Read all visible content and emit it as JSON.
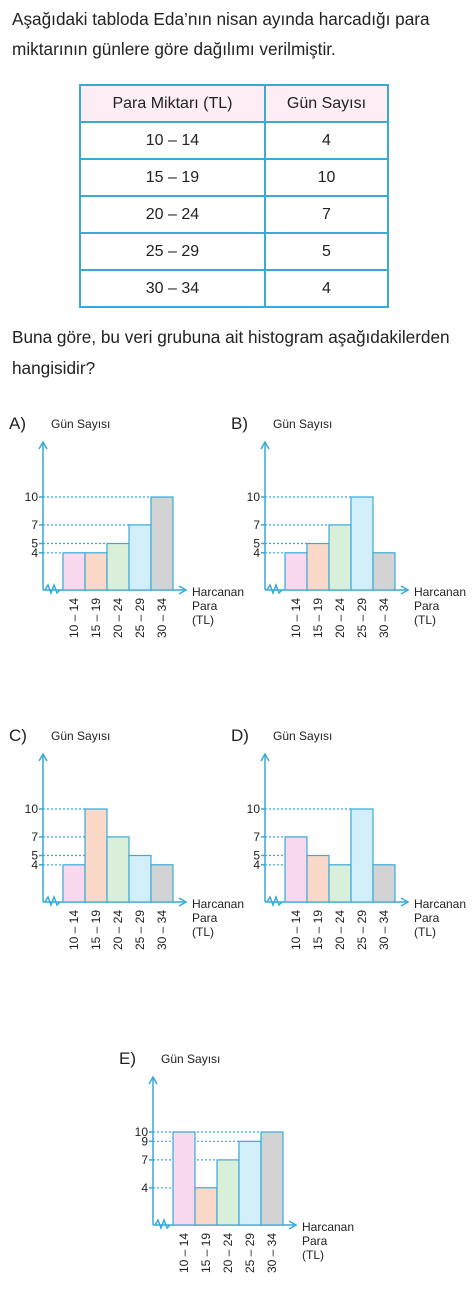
{
  "intro_text": "Aşağıdaki tabloda Eda’nın nisan ayında harcadığı para miktarının günlere göre dağılımı verilmiştir.",
  "table": {
    "headers": [
      "Para Miktarı (TL)",
      "Gün Sayısı"
    ],
    "rows": [
      [
        "10 – 14",
        "4"
      ],
      [
        "15 – 19",
        "10"
      ],
      [
        "20 – 24",
        "7"
      ],
      [
        "25 – 29",
        "5"
      ],
      [
        "30 – 34",
        "4"
      ]
    ]
  },
  "question_text": "Buna göre, bu veri grubuna ait histogram aşağıdakilerden hangisidir?",
  "colors": {
    "accent": "#39a9d9",
    "bars": [
      "#f9d9ee",
      "#fbd9c9",
      "#d9efd9",
      "#d2eef8",
      "#d3d3d3"
    ]
  },
  "chart_data": [
    {
      "type": "bar",
      "option": "A)",
      "ylabel": "Gün Sayısı",
      "xlabel_lines": [
        "Harcanan",
        "Para",
        "(TL)"
      ],
      "categories": [
        "10 – 14",
        "15 – 19",
        "20 – 24",
        "25 – 29",
        "30 – 34"
      ],
      "values": [
        4,
        4,
        5,
        7,
        10
      ],
      "ticks": [
        4,
        5,
        7,
        10
      ]
    },
    {
      "type": "bar",
      "option": "B)",
      "ylabel": "Gün Sayısı",
      "xlabel_lines": [
        "Harcanan",
        "Para",
        "(TL)"
      ],
      "categories": [
        "10 – 14",
        "15 – 19",
        "20 – 24",
        "25 – 29",
        "30 – 34"
      ],
      "values": [
        4,
        5,
        7,
        10,
        4
      ],
      "ticks": [
        4,
        5,
        7,
        10
      ]
    },
    {
      "type": "bar",
      "option": "C)",
      "ylabel": "Gün Sayısı",
      "xlabel_lines": [
        "Harcanan",
        "Para",
        "(TL)"
      ],
      "categories": [
        "10 – 14",
        "15 – 19",
        "20 – 24",
        "25 – 29",
        "30 – 34"
      ],
      "values": [
        4,
        10,
        7,
        5,
        4
      ],
      "ticks": [
        4,
        5,
        7,
        10
      ]
    },
    {
      "type": "bar",
      "option": "D)",
      "ylabel": "Gün Sayısı",
      "xlabel_lines": [
        "Harcanan",
        "Para",
        "(TL)"
      ],
      "categories": [
        "10 – 14",
        "15 – 19",
        "20 – 24",
        "25 – 29",
        "30 – 34"
      ],
      "values": [
        7,
        5,
        4,
        10,
        4
      ],
      "ticks": [
        4,
        5,
        7,
        10
      ]
    },
    {
      "type": "bar",
      "option": "E)",
      "ylabel": "Gün Sayısı",
      "xlabel_lines": [
        "Harcanan",
        "Para",
        "(TL)"
      ],
      "categories": [
        "10 – 14",
        "15 – 19",
        "20 – 24",
        "25 – 29",
        "30 – 34"
      ],
      "values": [
        10,
        4,
        7,
        9,
        10
      ],
      "ticks": [
        4,
        7,
        9,
        10
      ]
    }
  ]
}
